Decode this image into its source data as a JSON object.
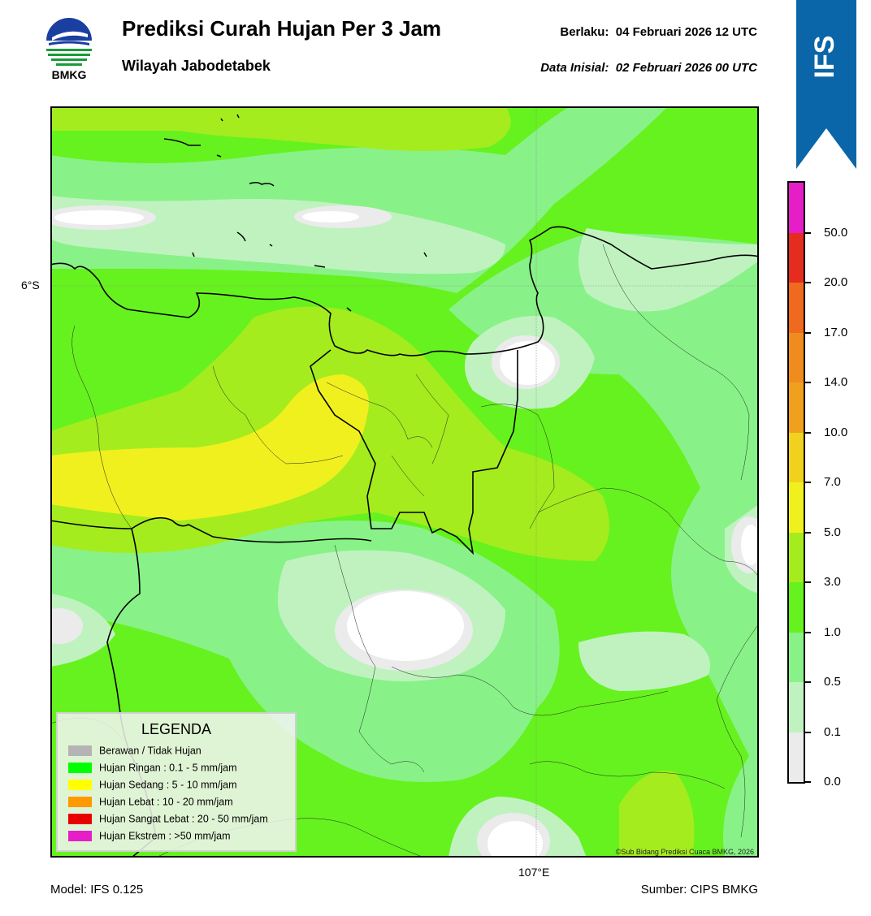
{
  "header": {
    "logo_text": "BMKG",
    "title": "Prediksi Curah Hujan Per 3 Jam",
    "subtitle": "Wilayah Jabodetabek",
    "valid_label": "Berlaku:",
    "valid_value": "04 Februari 2026 12 UTC",
    "init_label": "Data Inisial:",
    "init_value": "02 Februari 2026 00 UTC"
  },
  "banner": {
    "text": "IFS",
    "color": "#0a66a8"
  },
  "map": {
    "lat_label": "6°S",
    "lon_label": "107°E",
    "copyright": "©Sub Bidang Prediksi Cuaca BMKG, 2026"
  },
  "legend": {
    "title": "LEGENDA",
    "items": [
      {
        "label": "Berawan / Tidak Hujan",
        "color": "#b4b4b4"
      },
      {
        "label": "Hujan Ringan : 0.1 - 5 mm/jam",
        "color": "#00ff00"
      },
      {
        "label": "Hujan Sedang : 5 - 10 mm/jam",
        "color": "#ffff00"
      },
      {
        "label": "Hujan Lebat : 10 - 20 mm/jam",
        "color": "#ff9900"
      },
      {
        "label": "Hujan Sangat Lebat : 20 - 50 mm/jam",
        "color": "#e80000"
      },
      {
        "label": "Hujan Ekstrem : >50 mm/jam",
        "color": "#e61ec8"
      }
    ]
  },
  "colorbar": {
    "ticks": [
      "0.0",
      "0.1",
      "0.5",
      "1.0",
      "3.0",
      "5.0",
      "7.0",
      "10.0",
      "14.0",
      "17.0",
      "20.0",
      "50.0"
    ],
    "colors": [
      "#ebebeb",
      "#c0f2c0",
      "#88f288",
      "#66f21e",
      "#a4ec1e",
      "#f0f01e",
      "#f0d21e",
      "#f0a01e",
      "#f08c1e",
      "#ef6a1e",
      "#e62c1e",
      "#e61ec8"
    ]
  },
  "footer": {
    "model": "Model: IFS 0.125",
    "source": "Sumber: CIPS BMKG"
  }
}
